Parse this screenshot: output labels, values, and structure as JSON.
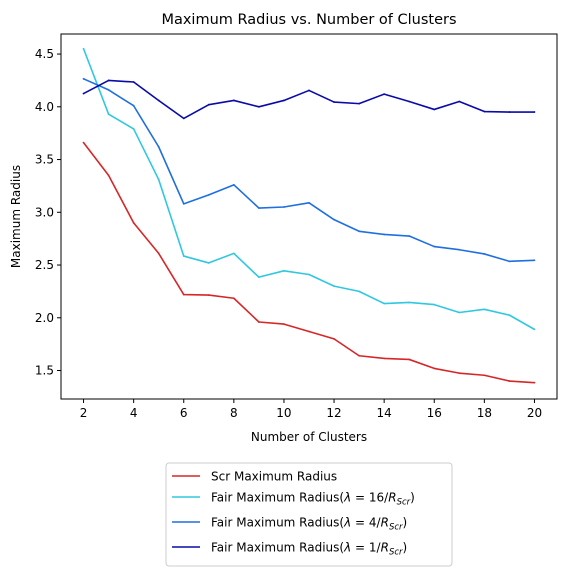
{
  "chart_data": {
    "type": "line",
    "title": "Maximum Radius vs. Number of Clusters",
    "xlabel": "Number of Clusters",
    "ylabel": "Maximum Radius",
    "xlim": [
      1.1,
      20.9
    ],
    "ylim": [
      1.23,
      4.69
    ],
    "xticks": [
      2,
      4,
      6,
      8,
      10,
      12,
      14,
      16,
      18,
      20
    ],
    "yticks": [
      1.5,
      2.0,
      2.5,
      3.0,
      3.5,
      4.0,
      4.5
    ],
    "ytick_labels": [
      "1.5",
      "2.0",
      "2.5",
      "3.0",
      "3.5",
      "4.0",
      "4.5"
    ],
    "legend_position": "below",
    "x": [
      2,
      3,
      4,
      5,
      6,
      7,
      8,
      9,
      10,
      11,
      12,
      13,
      14,
      15,
      16,
      17,
      18,
      19,
      20
    ],
    "series": [
      {
        "name": "Scr Maximum Radius",
        "color": "#d62728",
        "legend": {
          "text": "Scr Maximum Radius"
        },
        "values": [
          3.66,
          3.35,
          2.9,
          2.61,
          2.22,
          2.215,
          2.185,
          1.96,
          1.94,
          1.87,
          1.8,
          1.64,
          1.615,
          1.605,
          1.52,
          1.475,
          1.455,
          1.4,
          1.385
        ]
      },
      {
        "name": "Fair Maximum Radius(λ = 16/R_Scr)",
        "color": "#30c8e0",
        "legend": {
          "prefix": "Fair Maximum Radius(",
          "lambda": "λ",
          "eq": " = 16/",
          "r": "R",
          "sub": "Scr",
          "suffix": ")"
        },
        "values": [
          4.55,
          3.93,
          3.79,
          3.31,
          2.585,
          2.52,
          2.61,
          2.385,
          2.445,
          2.41,
          2.3,
          2.25,
          2.135,
          2.145,
          2.125,
          2.05,
          2.08,
          2.025,
          1.89
        ]
      },
      {
        "name": "Fair Maximum Radius(λ = 4/R_Scr)",
        "color": "#1f6fe0",
        "legend": {
          "prefix": "Fair Maximum Radius(",
          "lambda": "λ",
          "eq": " = 4/",
          "r": "R",
          "sub": "Scr",
          "suffix": ")"
        },
        "values": [
          4.265,
          4.16,
          4.01,
          3.62,
          3.08,
          3.165,
          3.26,
          3.04,
          3.05,
          3.09,
          2.93,
          2.82,
          2.79,
          2.775,
          2.675,
          2.645,
          2.605,
          2.535,
          2.545
        ]
      },
      {
        "name": "Fair Maximum Radius(λ = 1/R_Scr)",
        "color": "#0a0aa8",
        "legend": {
          "prefix": "Fair Maximum Radius(",
          "lambda": "λ",
          "eq": " = 1/",
          "r": "R",
          "sub": "Scr",
          "suffix": ")"
        },
        "values": [
          4.125,
          4.25,
          4.235,
          4.06,
          3.89,
          4.02,
          4.06,
          4.0,
          4.06,
          4.155,
          4.045,
          4.03,
          4.12,
          4.05,
          3.975,
          4.05,
          3.955,
          3.95,
          3.95
        ]
      }
    ]
  }
}
